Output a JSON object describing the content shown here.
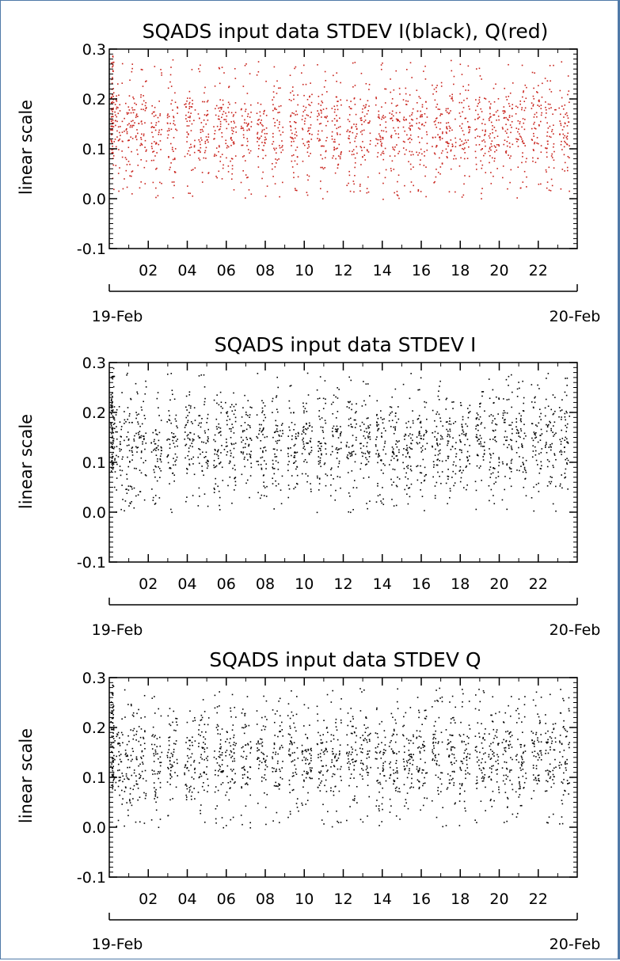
{
  "chart_data": [
    {
      "type": "scatter",
      "title": "SQADS input data STDEV I(black), Q(red)",
      "ylabel": "linear scale",
      "xlabel": "",
      "ylim": [
        -0.1,
        0.3
      ],
      "yticks": [
        "-0.1",
        "0.0",
        "0.1",
        "0.2",
        "0.3"
      ],
      "xticks": [
        "02",
        "04",
        "06",
        "08",
        "10",
        "12",
        "14",
        "16",
        "18",
        "20",
        "22"
      ],
      "date_labels": [
        "19-Feb",
        "20-Feb"
      ],
      "grid": false,
      "series": [
        {
          "color": "#000000"
        },
        {
          "color": "#c8211a"
        }
      ]
    },
    {
      "type": "scatter",
      "title": "SQADS input data STDEV I",
      "ylabel": "linear scale",
      "xlabel": "",
      "ylim": [
        -0.1,
        0.3
      ],
      "yticks": [
        "-0.1",
        "0.0",
        "0.1",
        "0.2",
        "0.3"
      ],
      "xticks": [
        "02",
        "04",
        "06",
        "08",
        "10",
        "12",
        "14",
        "16",
        "18",
        "20",
        "22"
      ],
      "date_labels": [
        "19-Feb",
        "20-Feb"
      ],
      "grid": false,
      "series": [
        {
          "color": "#000000"
        }
      ]
    },
    {
      "type": "scatter",
      "title": "SQADS input data STDEV Q",
      "ylabel": "linear scale",
      "xlabel": "",
      "ylim": [
        -0.1,
        0.3
      ],
      "yticks": [
        "-0.1",
        "0.0",
        "0.1",
        "0.2",
        "0.3"
      ],
      "xticks": [
        "02",
        "04",
        "06",
        "08",
        "10",
        "12",
        "14",
        "16",
        "18",
        "20",
        "22"
      ],
      "date_labels": [
        "19-Feb",
        "20-Feb"
      ],
      "grid": false,
      "series": [
        {
          "color": "#000000"
        }
      ]
    }
  ]
}
